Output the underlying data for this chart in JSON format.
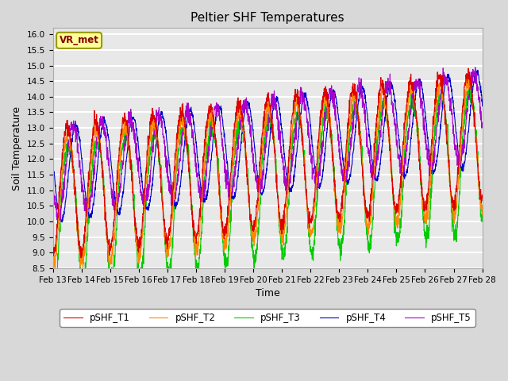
{
  "title": "Peltier SHF Temperatures",
  "xlabel": "Time",
  "ylabel": "Soil Temperature",
  "ylim": [
    8.5,
    16.2
  ],
  "xlim_days": [
    0,
    15
  ],
  "date_labels": [
    "Feb 13",
    "Feb 14",
    "Feb 15",
    "Feb 16",
    "Feb 17",
    "Feb 18",
    "Feb 19",
    "Feb 20",
    "Feb 21",
    "Feb 22",
    "Feb 23",
    "Feb 24",
    "Feb 25",
    "Feb 26",
    "Feb 27",
    "Feb 28"
  ],
  "date_ticks": [
    0,
    1,
    2,
    3,
    4,
    5,
    6,
    7,
    8,
    9,
    10,
    11,
    12,
    13,
    14,
    15
  ],
  "legend_labels": [
    "pSHF_T1",
    "pSHF_T2",
    "pSHF_T3",
    "pSHF_T4",
    "pSHF_T5"
  ],
  "line_colors": [
    "#dd0000",
    "#ff8800",
    "#00cc00",
    "#0000cc",
    "#aa00cc"
  ],
  "annotation_text": "VR_met",
  "annotation_box_color": "#ffff99",
  "annotation_box_edge_color": "#999900",
  "annotation_text_color": "#880000",
  "background_color": "#d8d8d8",
  "plot_bg_color": "#e8e8e8",
  "grid_color": "#ffffff",
  "yticks": [
    8.5,
    9.0,
    9.5,
    10.0,
    10.5,
    11.0,
    11.5,
    12.0,
    12.5,
    13.0,
    13.5,
    14.0,
    14.5,
    15.0,
    15.5,
    16.0
  ],
  "seed": 42
}
